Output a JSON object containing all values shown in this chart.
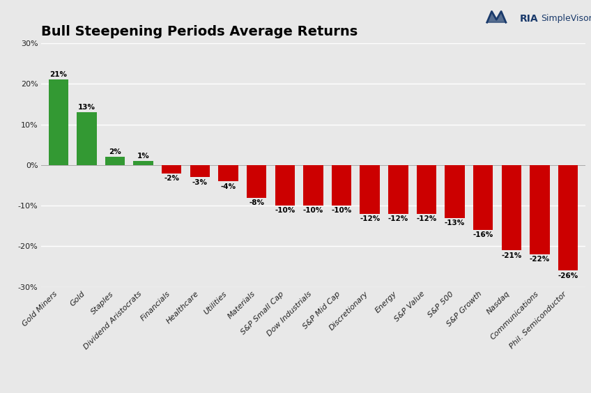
{
  "title": "Bull Steepening Periods Average Returns",
  "categories": [
    "Gold Miners",
    "Gold",
    "Staples",
    "Dividend Aristocrats",
    "Financials",
    "Healthcare",
    "Utilities",
    "Materials",
    "S&P Small Cap",
    "Dow Industrials",
    "S&P Mid Cap",
    "Discretionary",
    "Energy",
    "S&P Value",
    "S&P 500",
    "S&P Growth",
    "Nasdaq",
    "Communications",
    "Phil. Semiconductor"
  ],
  "values": [
    21,
    13,
    2,
    1,
    -2,
    -3,
    -4,
    -8,
    -10,
    -10,
    -10,
    -12,
    -12,
    -12,
    -13,
    -16,
    -21,
    -22,
    -26
  ],
  "bar_colors_pos": "#339933",
  "bar_colors_neg": "#cc0000",
  "ylim": [
    -30,
    30
  ],
  "yticks": [
    -30,
    -20,
    -10,
    0,
    10,
    20,
    30
  ],
  "ytick_labels": [
    "-30%",
    "-20%",
    "-10%",
    "0%",
    "10%",
    "20%",
    "30%"
  ],
  "background_color": "#e8e8e8",
  "grid_color": "#ffffff",
  "title_fontsize": 14,
  "label_fontsize": 7.5,
  "tick_fontsize": 8,
  "bar_width": 0.7
}
